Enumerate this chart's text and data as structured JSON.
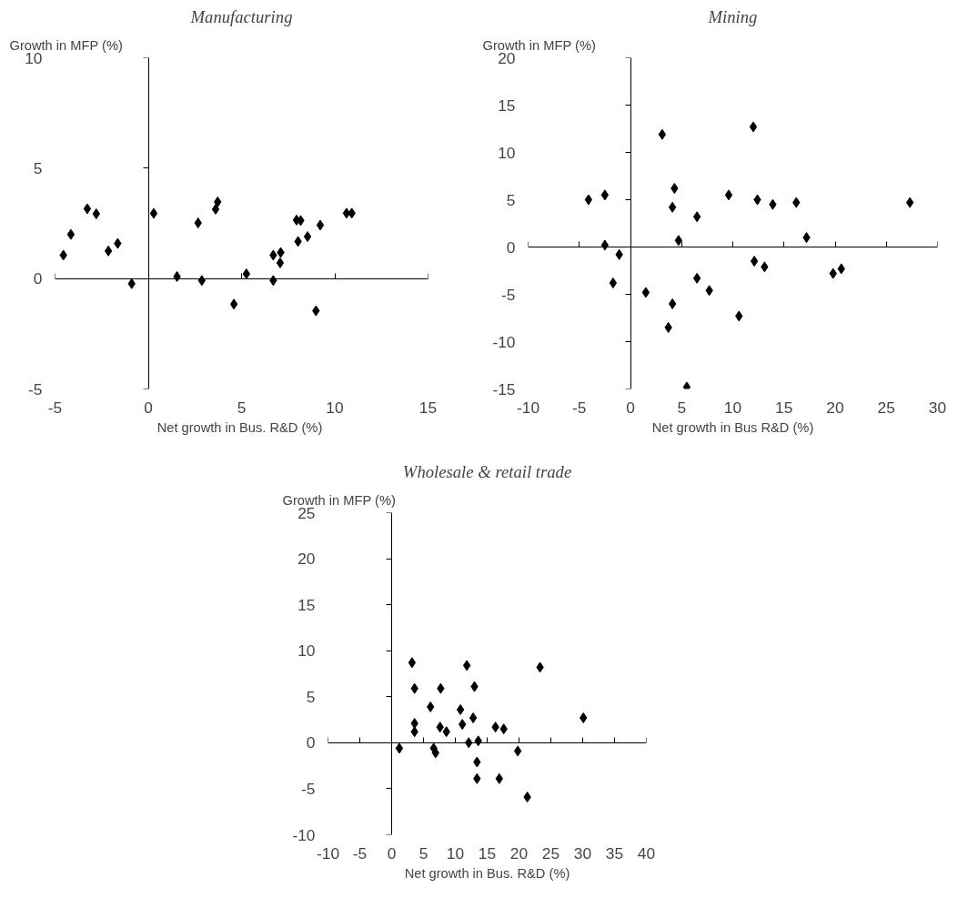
{
  "chart_data": [
    {
      "type": "scatter",
      "title": "Manufacturing",
      "ylabel": "Growth in MFP (%)",
      "xlabel": "Net growth in Bus. R&D  (%)",
      "marker": "diamond",
      "color": "#000000",
      "xlim": [
        -5,
        15
      ],
      "ylim": [
        -5,
        10
      ],
      "xticks": [
        -5,
        0,
        5,
        10,
        15
      ],
      "yticks": [
        -5,
        0,
        5,
        10
      ],
      "x": [
        -4.55,
        -4.15,
        -3.27,
        -2.79,
        -2.14,
        -1.64,
        -0.89,
        0.29,
        1.54,
        2.67,
        2.87,
        3.61,
        3.72,
        4.59,
        5.26,
        6.7,
        6.7,
        7.1,
        7.07,
        7.95,
        8.17,
        8.03,
        8.54,
        9.22,
        8.99,
        10.63,
        10.91
      ],
      "values": [
        1.06,
        2.0,
        3.16,
        2.93,
        1.25,
        1.59,
        -0.23,
        2.95,
        0.09,
        2.52,
        -0.09,
        3.14,
        3.47,
        -1.16,
        0.21,
        -0.09,
        1.06,
        1.18,
        0.71,
        2.65,
        2.63,
        1.68,
        1.9,
        2.42,
        -1.46,
        2.96,
        2.96
      ]
    },
    {
      "type": "scatter",
      "title": "Mining",
      "ylabel": "Growth in MFP (%)",
      "xlabel": "Net growth in Bus R&D (%)",
      "marker": "diamond",
      "color": "#000000",
      "xlim": [
        -10,
        30
      ],
      "ylim": [
        -15,
        20
      ],
      "xticks": [
        -10,
        -5,
        0,
        5,
        10,
        15,
        20,
        25,
        30
      ],
      "yticks": [
        -15,
        -10,
        -5,
        0,
        5,
        10,
        15,
        20
      ],
      "x": [
        -4.1,
        -2.5,
        -2.5,
        -1.1,
        -1.7,
        1.5,
        3.1,
        4.3,
        4.1,
        4.7,
        4.1,
        3.7,
        5.5,
        6.5,
        6.5,
        7.7,
        9.6,
        10.6,
        12.0,
        12.4,
        12.1,
        13.1,
        13.9,
        16.2,
        17.2,
        19.8,
        20.6,
        27.3
      ],
      "values": [
        5.0,
        5.5,
        0.2,
        -0.8,
        -3.8,
        -4.8,
        11.9,
        6.2,
        4.2,
        0.7,
        -6.0,
        -8.5,
        -14.8,
        3.2,
        -3.3,
        -4.6,
        5.5,
        -7.3,
        12.7,
        5.0,
        -1.5,
        -2.1,
        4.5,
        4.7,
        1.0,
        -2.8,
        -2.3,
        4.7
      ]
    },
    {
      "type": "scatter",
      "title": "Wholesale & retail trade",
      "ylabel": "Growth in MFP (%)",
      "xlabel": "Net growth in Bus. R&D (%)",
      "marker": "diamond",
      "color": "#000000",
      "xlim": [
        -10,
        40
      ],
      "ylim": [
        -10,
        25
      ],
      "xticks": [
        -10,
        -5,
        0,
        5,
        10,
        15,
        20,
        25,
        30,
        35,
        40
      ],
      "yticks": [
        -10,
        -5,
        0,
        5,
        10,
        15,
        20,
        25
      ],
      "x": [
        1.2,
        3.2,
        3.6,
        3.6,
        3.6,
        6.1,
        6.6,
        6.9,
        7.7,
        7.6,
        8.6,
        10.8,
        11.1,
        11.8,
        12.1,
        13.0,
        12.8,
        13.6,
        13.4,
        13.4,
        16.3,
        17.6,
        16.9,
        19.8,
        21.3,
        23.3,
        30.1
      ],
      "values": [
        -0.6,
        8.7,
        5.9,
        2.1,
        1.2,
        3.9,
        -0.6,
        -1.1,
        5.9,
        1.7,
        1.2,
        3.6,
        2.0,
        8.4,
        0.0,
        6.1,
        2.7,
        0.2,
        -2.1,
        -3.9,
        1.7,
        1.5,
        -3.9,
        -0.9,
        -5.9,
        8.2,
        2.7
      ]
    }
  ]
}
